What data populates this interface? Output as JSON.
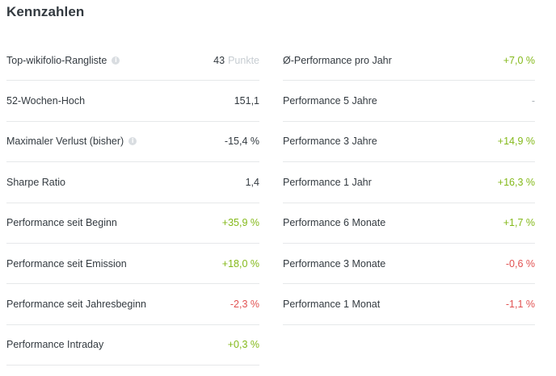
{
  "title": "Kennzahlen",
  "info_glyph": "i",
  "left_rows": [
    {
      "label": "Top-wikifolio-Rangliste",
      "info": true,
      "value": "43",
      "suffix": "Punkte",
      "tone": "default"
    },
    {
      "label": "52-Wochen-Hoch",
      "info": false,
      "value": "151,1",
      "suffix": "",
      "tone": "default"
    },
    {
      "label": "Maximaler Verlust (bisher)",
      "info": true,
      "value": "-15,4 %",
      "suffix": "",
      "tone": "default"
    },
    {
      "label": "Sharpe Ratio",
      "info": false,
      "value": "1,4",
      "suffix": "",
      "tone": "default"
    },
    {
      "label": "Performance seit Beginn",
      "info": false,
      "value": "+35,9 %",
      "suffix": "",
      "tone": "positive"
    },
    {
      "label": "Performance seit Emission",
      "info": false,
      "value": "+18,0 %",
      "suffix": "",
      "tone": "positive"
    },
    {
      "label": "Performance seit Jahresbeginn",
      "info": false,
      "value": "-2,3 %",
      "suffix": "",
      "tone": "negative"
    },
    {
      "label": "Performance Intraday",
      "info": false,
      "value": "+0,3 %",
      "suffix": "",
      "tone": "positive"
    }
  ],
  "right_rows": [
    {
      "label": "Ø-Performance pro Jahr",
      "info": false,
      "value": "+7,0 %",
      "suffix": "",
      "tone": "positive"
    },
    {
      "label": "Performance 5 Jahre",
      "info": false,
      "value": "-",
      "suffix": "",
      "tone": "neutral-dim"
    },
    {
      "label": "Performance 3 Jahre",
      "info": false,
      "value": "+14,9 %",
      "suffix": "",
      "tone": "positive"
    },
    {
      "label": "Performance 1 Jahr",
      "info": false,
      "value": "+16,3 %",
      "suffix": "",
      "tone": "positive"
    },
    {
      "label": "Performance 6 Monate",
      "info": false,
      "value": "+1,7 %",
      "suffix": "",
      "tone": "positive"
    },
    {
      "label": "Performance 3 Monate",
      "info": false,
      "value": "-0,6 %",
      "suffix": "",
      "tone": "negative"
    },
    {
      "label": "Performance 1 Monat",
      "info": false,
      "value": "-1,1 %",
      "suffix": "",
      "tone": "negative"
    }
  ],
  "colors": {
    "positive": "#84b91a",
    "negative": "#e15151",
    "text": "#333a40",
    "divider": "#e6e8ea"
  }
}
